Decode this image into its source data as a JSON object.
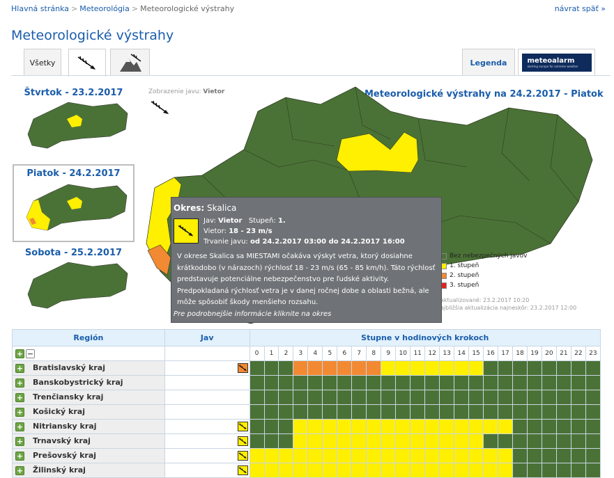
{
  "breadcrumb": {
    "home": "Hlavná stránka",
    "meteo": "Meteorológia",
    "current": "Meteorologické výstrahy",
    "separator": ">"
  },
  "back_link": "návrat späť »",
  "page_title": "Meteorologické výstrahy",
  "tabs": {
    "all": "Všetky",
    "legend": "Legenda",
    "meteoalarm": "meteoalarm",
    "meteoalarm_sub": "alerting europe for extreme weather"
  },
  "days": [
    {
      "label": "Štvrtok - 23.2.2017"
    },
    {
      "label": "Piatok - 24.2.2017",
      "selected": true
    },
    {
      "label": "Sobota - 25.2.2017"
    }
  ],
  "phenomenon_display": {
    "label": "Zobrazenie javu:",
    "value": "Vietor"
  },
  "main_map_title": "Meteorologické výstrahy na 24.2.2017 - Piatok",
  "tooltip": {
    "okres_label": "Okres:",
    "okres": "Skalica",
    "jav_label": "Jav:",
    "jav": "Vietor",
    "stupen_label": "Stupeň:",
    "stupen": "1.",
    "vietor_label": "Vietor:",
    "vietor": "18 - 23 m/s",
    "trvanie_label": "Trvanie javu:",
    "trvanie": "od 24.2.2017 03:00 do 24.2.2017 16:00",
    "description": "V okrese Skalica sa MIESTAMI očakáva výskyt vetra, ktorý dosiahne krátkodobo (v nárazoch) rýchlosť 18 - 23 m/s (65 - 85 km/h). Táto rýchlosť predstavuje potenciálne nebezpečenstvo pre ľudské aktivity. Predpokladaná rýchlosť vetra je v danej ročnej dobe a oblasti bežná, ale môže spôsobiť škody menšieho rozsahu.",
    "more": "Pre podrobnejšie informácie kliknite na okres"
  },
  "legend": [
    {
      "label": "Bez nebezpečných javov",
      "color": "#4b7236"
    },
    {
      "label": "1. stupeň",
      "color": "#ffef00"
    },
    {
      "label": "2. stupeň",
      "color": "#f18a33"
    },
    {
      "label": "3. stupeň",
      "color": "#e8211b"
    }
  ],
  "updates": {
    "updated": "aktualizované: 23.2.2017 10:20",
    "next": "ajbližšia aktualizácia najneskôr: 23.2.2017 12:00"
  },
  "table": {
    "col_region": "Región",
    "col_jav": "Jav",
    "col_hours": "Stupne v hodinových krokoch",
    "hours": [
      "0",
      "1",
      "2",
      "3",
      "4",
      "5",
      "6",
      "7",
      "8",
      "9",
      "10",
      "11",
      "12",
      "13",
      "14",
      "15",
      "16",
      "17",
      "18",
      "19",
      "20",
      "21",
      "22",
      "23"
    ],
    "rows": [
      {
        "name": "Bratislavský kraj",
        "jav": "orange",
        "levels": [
          0,
          0,
          0,
          2,
          2,
          2,
          2,
          2,
          2,
          1,
          1,
          1,
          1,
          1,
          1,
          1,
          0,
          0,
          0,
          0,
          0,
          0,
          0,
          0
        ]
      },
      {
        "name": "Banskobystrický kraj",
        "jav": "",
        "levels": [
          0,
          0,
          0,
          0,
          0,
          0,
          0,
          0,
          0,
          0,
          0,
          0,
          0,
          0,
          0,
          0,
          0,
          0,
          0,
          0,
          0,
          0,
          0,
          0
        ]
      },
      {
        "name": "Trenčiansky kraj",
        "jav": "",
        "levels": [
          0,
          0,
          0,
          0,
          0,
          0,
          0,
          0,
          0,
          0,
          0,
          0,
          0,
          0,
          0,
          0,
          0,
          0,
          0,
          0,
          0,
          0,
          0,
          0
        ]
      },
      {
        "name": "Košický kraj",
        "jav": "",
        "levels": [
          0,
          0,
          0,
          0,
          0,
          0,
          0,
          0,
          0,
          0,
          0,
          0,
          0,
          0,
          0,
          0,
          0,
          0,
          0,
          0,
          0,
          0,
          0,
          0
        ]
      },
      {
        "name": "Nitriansky kraj",
        "jav": "yellow",
        "levels": [
          0,
          0,
          0,
          1,
          1,
          1,
          1,
          1,
          1,
          1,
          1,
          1,
          1,
          1,
          1,
          1,
          1,
          1,
          0,
          0,
          0,
          0,
          0,
          0
        ]
      },
      {
        "name": "Trnavský kraj",
        "jav": "yellow",
        "levels": [
          0,
          0,
          0,
          1,
          1,
          1,
          1,
          1,
          1,
          1,
          1,
          1,
          1,
          1,
          1,
          1,
          0,
          0,
          0,
          0,
          0,
          0,
          0,
          0
        ]
      },
      {
        "name": "Prešovský kraj",
        "jav": "yellow",
        "levels": [
          1,
          1,
          1,
          1,
          1,
          1,
          1,
          1,
          1,
          1,
          1,
          1,
          1,
          1,
          1,
          1,
          1,
          1,
          0,
          0,
          0,
          0,
          0,
          0
        ]
      },
      {
        "name": "Žilinský kraj",
        "jav": "yellow",
        "levels": [
          1,
          1,
          1,
          1,
          1,
          1,
          1,
          1,
          1,
          1,
          1,
          1,
          1,
          1,
          1,
          1,
          1,
          1,
          0,
          0,
          0,
          0,
          0,
          0
        ]
      }
    ]
  }
}
